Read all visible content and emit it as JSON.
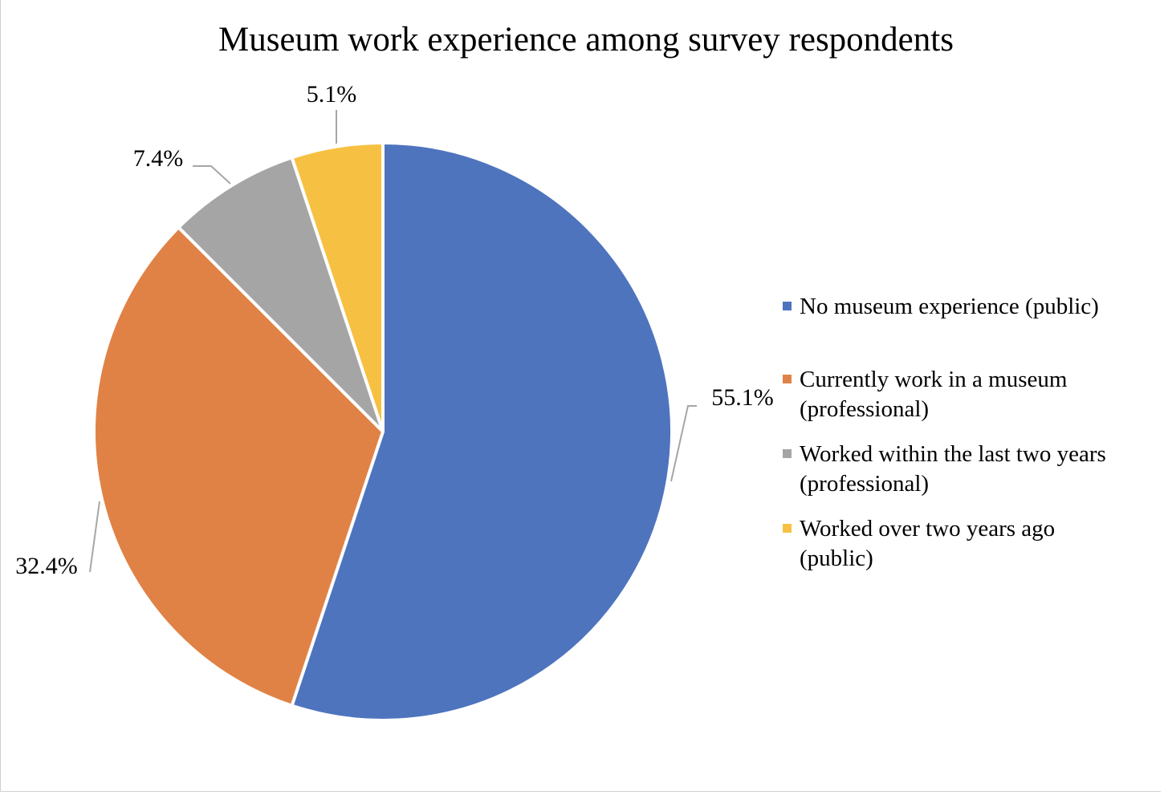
{
  "chart_data": {
    "type": "pie",
    "title": "Museum work experience among survey respondents",
    "start_angle_deg": 0,
    "direction": "clockwise",
    "legend_position": "right",
    "slices": [
      {
        "name": "No museum experience (public)",
        "legend_lines": [
          "No museum experience (public)"
        ],
        "value": 55.1,
        "label": "55.1%",
        "color": "#4e74be"
      },
      {
        "name": "Currently work in a museum (professional)",
        "legend_lines": [
          "Currently work in a museum",
          "(professional)"
        ],
        "value": 32.4,
        "label": "32.4%",
        "color": "#e08245"
      },
      {
        "name": "Worked within the last two years (professional)",
        "legend_lines": [
          "Worked within the last two years",
          "(professional)"
        ],
        "value": 7.4,
        "label": "7.4%",
        "color": "#a5a5a5"
      },
      {
        "name": "Worked over two years ago (public)",
        "legend_lines": [
          "Worked over two years ago",
          "(public)"
        ],
        "value": 5.1,
        "label": "5.1%",
        "color": "#f6c143"
      }
    ]
  }
}
